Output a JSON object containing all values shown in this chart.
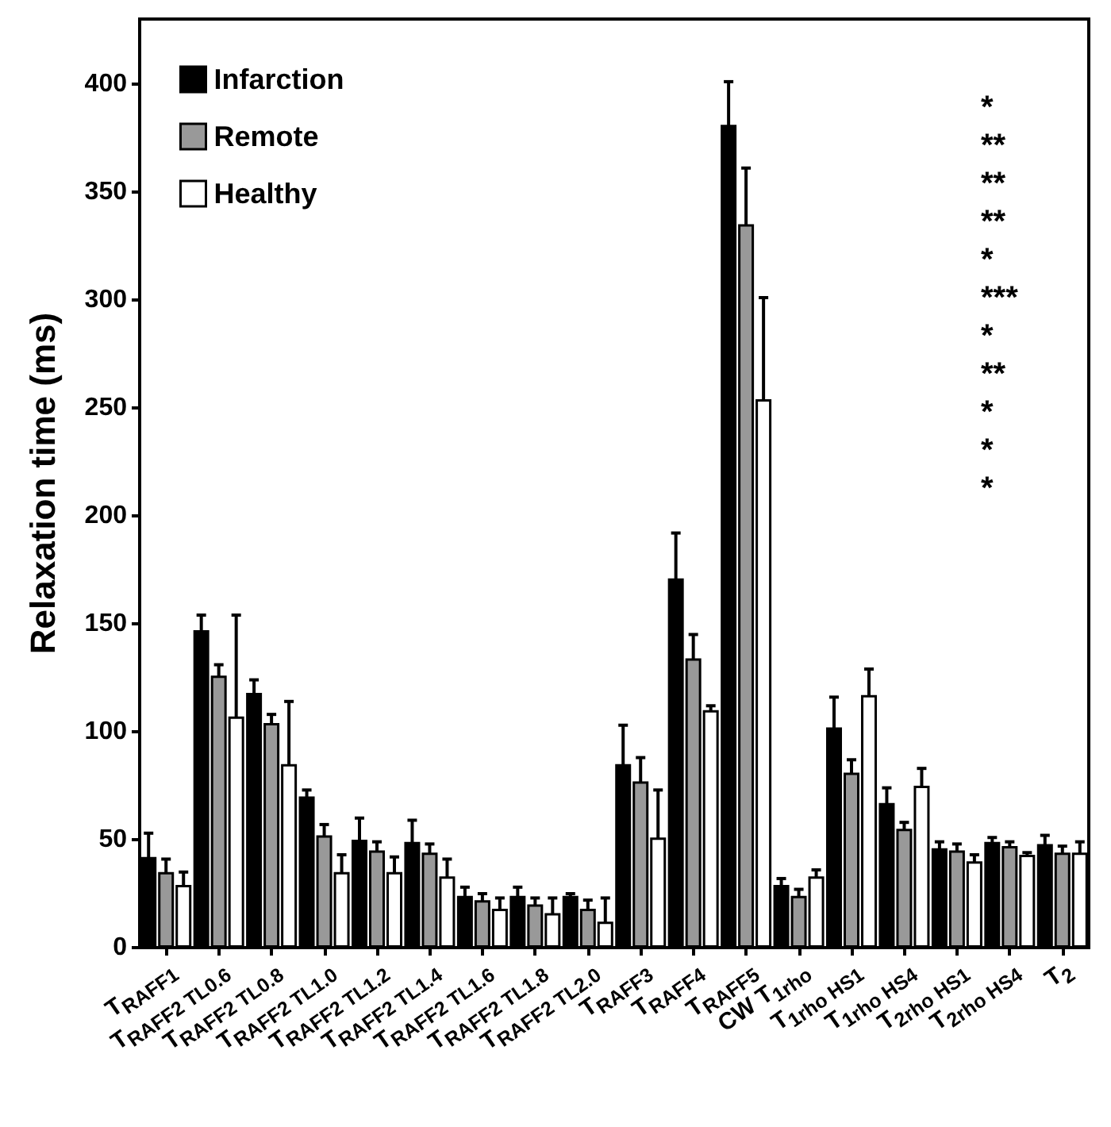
{
  "chart_data": {
    "type": "bar",
    "ylabel": "Relaxation time (ms)",
    "categories": [
      "T$_{RAFF1}$",
      "T$_{RAFF2 TL0.6}$",
      "T$_{RAFF2 TL0.8}$",
      "T$_{RAFF2 TL1.0}$",
      "T$_{RAFF2 TL1.2}$",
      "T$_{RAFF2 TL1.4}$",
      "T$_{RAFF2 TL1.6}$",
      "T$_{RAFF2 TL1.8}$",
      "T$_{RAFF2 TL2.0}$",
      "T$_{RAFF3}$",
      "T$_{RAFF4}$",
      "T$_{RAFF5}$",
      "CW T$_{1rho}$",
      "T$_{1rho HS1}$",
      "T$_{1rho HS4}$",
      "T$_{2rho HS1}$",
      "T$_{2rho HS4}$",
      "T$_{2}$"
    ],
    "series": [
      {
        "name": "Infarction",
        "color": "#000000",
        "values": [
          42,
          147,
          118,
          70,
          50,
          49,
          24,
          24,
          24,
          85,
          171,
          381,
          29,
          102,
          67,
          46,
          49,
          48
        ],
        "errors": [
          11,
          7,
          6,
          3,
          10,
          10,
          4,
          4,
          1,
          18,
          21,
          20,
          3,
          14,
          7,
          3,
          2,
          4
        ]
      },
      {
        "name": "Remote",
        "color": "#999999",
        "values": [
          35,
          126,
          104,
          52,
          45,
          44,
          22,
          20,
          18,
          77,
          134,
          335,
          24,
          81,
          55,
          45,
          47,
          44
        ],
        "errors": [
          6,
          5,
          4,
          5,
          4,
          4,
          3,
          3,
          4,
          11,
          11,
          26,
          3,
          6,
          3,
          3,
          2,
          3
        ]
      },
      {
        "name": "Healthy",
        "color": "#ffffff",
        "values": [
          29,
          107,
          85,
          35,
          35,
          33,
          18,
          16,
          12,
          51,
          110,
          254,
          33,
          117,
          75,
          40,
          43,
          44
        ],
        "errors": [
          6,
          47,
          29,
          8,
          7,
          8,
          5,
          7,
          11,
          22,
          2,
          47,
          3,
          12,
          8,
          3,
          1,
          5
        ]
      }
    ],
    "ylim": [
      0,
      430
    ],
    "yticks": [
      0,
      50,
      100,
      150,
      200,
      250,
      300,
      350,
      400
    ],
    "legend": "top left",
    "grid": false,
    "annotations": [
      "*",
      "**",
      "**",
      "**",
      "*",
      "***",
      "*",
      "**",
      "*",
      "*",
      "*"
    ]
  }
}
